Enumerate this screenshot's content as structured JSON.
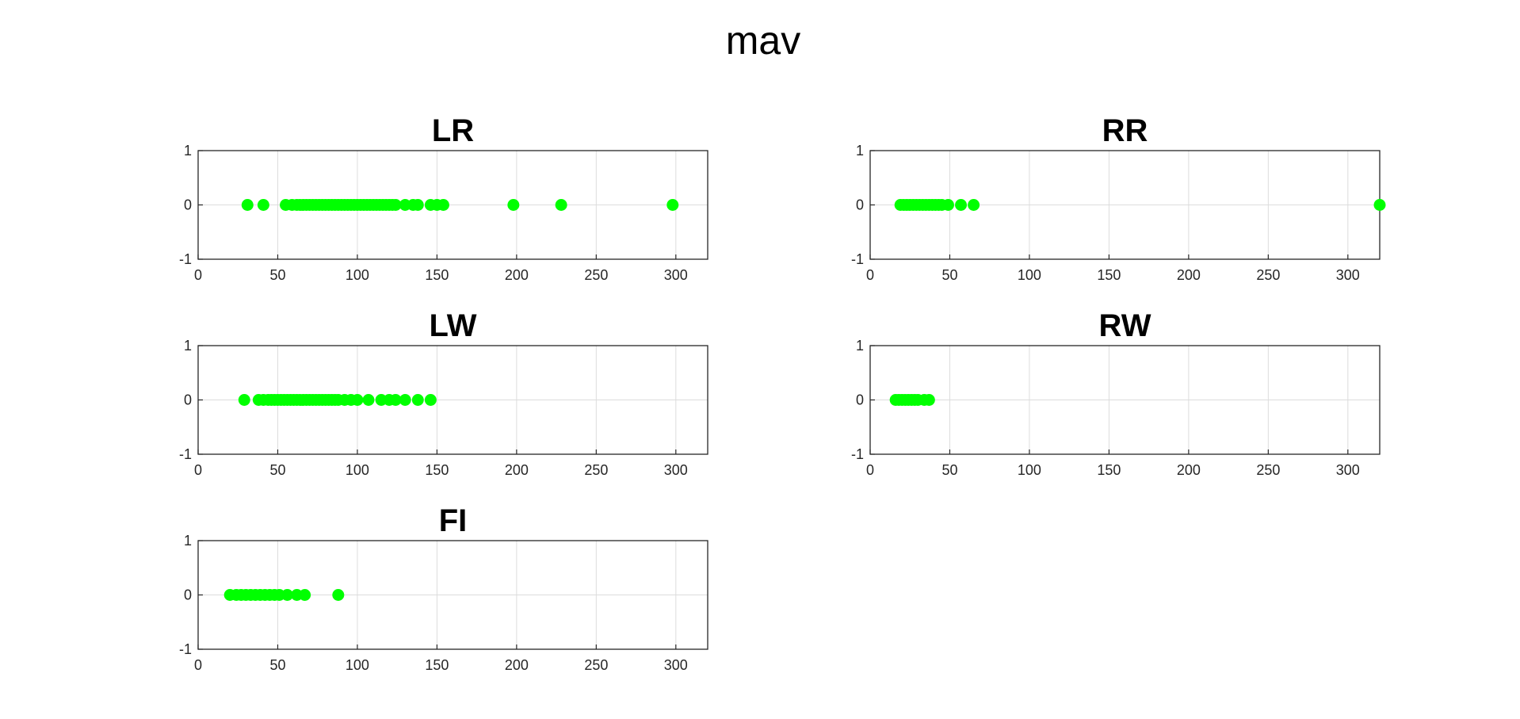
{
  "figure_title": "mav",
  "colors": {
    "marker": "#00ff00",
    "axis": "#262626",
    "grid": "#dcdcdc"
  },
  "chart_data": [
    {
      "type": "scatter",
      "title": "LR",
      "xlim": [
        0,
        320
      ],
      "ylim": [
        -1,
        1
      ],
      "xticks": [
        "0",
        "50",
        "100",
        "150",
        "200",
        "250",
        "300"
      ],
      "yticks": [
        "1",
        "0",
        "-1"
      ],
      "grid": true,
      "x": [
        31,
        41,
        55,
        59,
        62,
        64,
        66,
        68,
        70,
        72,
        74,
        76,
        78,
        80,
        82,
        84,
        86,
        88,
        90,
        92,
        94,
        96,
        98,
        100,
        102,
        104,
        106,
        108,
        110,
        112,
        114,
        116,
        118,
        120,
        122,
        124,
        130,
        135,
        138,
        146,
        150,
        154,
        198,
        228,
        298
      ],
      "y": 0
    },
    {
      "type": "scatter",
      "title": "RR",
      "xlim": [
        0,
        320
      ],
      "ylim": [
        -1,
        1
      ],
      "xticks": [
        "0",
        "50",
        "100",
        "150",
        "200",
        "250",
        "300"
      ],
      "yticks": [
        "1",
        "0",
        "-1"
      ],
      "grid": true,
      "x": [
        19,
        21,
        23,
        25,
        27,
        29,
        31,
        33,
        35,
        37,
        39,
        41,
        43,
        45,
        49,
        57,
        65,
        320
      ],
      "y": 0
    },
    {
      "type": "scatter",
      "title": "LW",
      "xlim": [
        0,
        320
      ],
      "ylim": [
        -1,
        1
      ],
      "xticks": [
        "0",
        "50",
        "100",
        "150",
        "200",
        "250",
        "300"
      ],
      "yticks": [
        "1",
        "0",
        "-1"
      ],
      "grid": true,
      "x": [
        29,
        38,
        41,
        44,
        46,
        48,
        50,
        52,
        54,
        56,
        58,
        60,
        62,
        64,
        66,
        68,
        70,
        72,
        74,
        76,
        78,
        80,
        82,
        84,
        86,
        88,
        92,
        96,
        100,
        107,
        115,
        120,
        124,
        130,
        138,
        146
      ],
      "y": 0
    },
    {
      "type": "scatter",
      "title": "RW",
      "xlim": [
        0,
        320
      ],
      "ylim": [
        -1,
        1
      ],
      "xticks": [
        "0",
        "50",
        "100",
        "150",
        "200",
        "250",
        "300"
      ],
      "yticks": [
        "1",
        "0",
        "-1"
      ],
      "grid": true,
      "x": [
        16,
        18,
        20,
        22,
        24,
        26,
        28,
        30,
        34,
        37
      ],
      "y": 0
    },
    {
      "type": "scatter",
      "title": "FI",
      "xlim": [
        0,
        320
      ],
      "ylim": [
        -1,
        1
      ],
      "xticks": [
        "0",
        "50",
        "100",
        "150",
        "200",
        "250",
        "300"
      ],
      "yticks": [
        "1",
        "0",
        "-1"
      ],
      "grid": true,
      "x": [
        20,
        24,
        27,
        30,
        33,
        36,
        39,
        42,
        45,
        48,
        51,
        56,
        62,
        67,
        88
      ],
      "y": 0
    }
  ]
}
